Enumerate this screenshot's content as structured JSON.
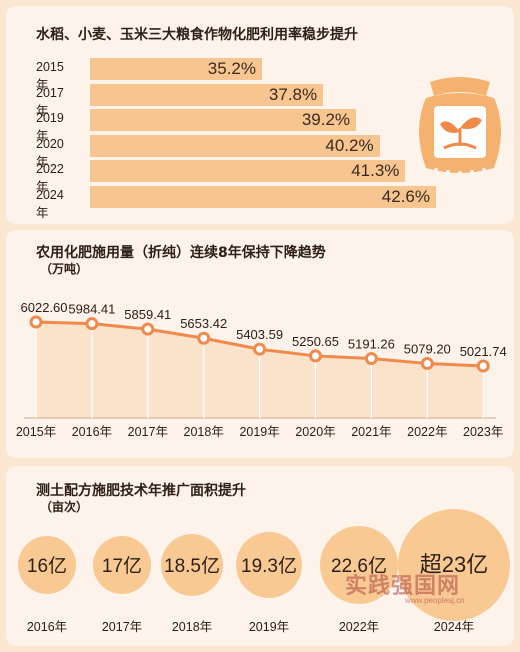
{
  "panel1": {
    "title": "水稻、小麦、玉米三大粮食作物化肥利用率稳步提升",
    "icon": "fertilizer-bag-sprout-icon"
  },
  "panel2": {
    "title": "农用化肥施用量（折纯）连续8年保持下降趋势",
    "unit": "（万吨）"
  },
  "panel3": {
    "title": "测土配方施肥技术年推广面积提升",
    "unit": "（亩次）"
  },
  "watermark": {
    "text": "实践强国网",
    "url": "www.peoplesj.cn"
  },
  "colors": {
    "bar": "#f7c58f",
    "line": "#f08a4b",
    "area": "#fbe2cb",
    "bubble": "#f9c994",
    "background": "#fbe6d2"
  },
  "chart_data": [
    {
      "type": "bar",
      "title": "水稻、小麦、玉米三大粮食作物化肥利用率稳步提升",
      "categories": [
        "2015年",
        "2017年",
        "2019年",
        "2020年",
        "2022年",
        "2024年"
      ],
      "values": [
        35.2,
        37.8,
        39.2,
        40.2,
        41.3,
        42.6
      ],
      "labels": [
        "35.2%",
        "37.8%",
        "39.2%",
        "40.2%",
        "41.3%",
        "42.6%"
      ],
      "orientation": "horizontal"
    },
    {
      "type": "area",
      "title": "农用化肥施用量（折纯）连续8年保持下降趋势",
      "ylabel": "（万吨）",
      "categories": [
        "2015年",
        "2016年",
        "2017年",
        "2018年",
        "2019年",
        "2020年",
        "2021年",
        "2022年",
        "2023年"
      ],
      "values": [
        6022.6,
        5984.41,
        5859.41,
        5653.42,
        5403.59,
        5250.65,
        5191.26,
        5079.2,
        5021.74
      ],
      "labels": [
        "6022.60",
        "5984.41",
        "5859.41",
        "5653.42",
        "5403.59",
        "5250.65",
        "5191.26",
        "5079.20",
        "5021.74"
      ]
    },
    {
      "type": "bubble",
      "title": "测土配方施肥技术年推广面积提升",
      "ylabel": "（亩次）",
      "categories": [
        "2016年",
        "2017年",
        "2018年",
        "2019年",
        "2022年",
        "2024年"
      ],
      "values": [
        16,
        17,
        18.5,
        19.3,
        22.6,
        23
      ],
      "labels": [
        "16亿",
        "17亿",
        "18.5亿",
        "19.3亿",
        "22.6亿",
        "超23亿"
      ]
    }
  ]
}
